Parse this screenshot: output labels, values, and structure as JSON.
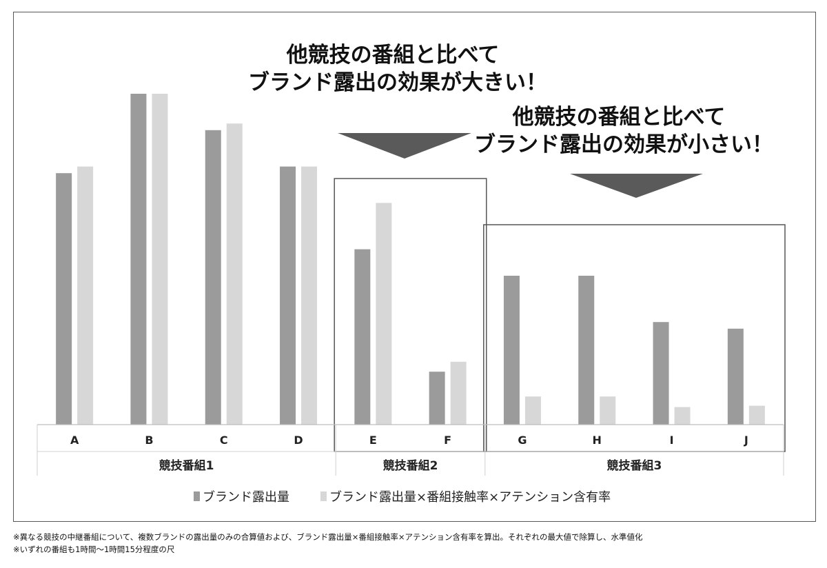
{
  "callouts": {
    "large": [
      "他競技の番組と比べて",
      "ブランド露出の効果が大きい！"
    ],
    "small": [
      "他競技の番組と比べて",
      "ブランド露出の効果が小さい！"
    ]
  },
  "legend": {
    "series1": "ブランド露出量",
    "series2": "ブランド露出量×番組接触率×アテンション含有率"
  },
  "notes": [
    "※異なる競技の中継番組について、複数ブランドの露出量のみの合算値および、ブランド露出量×番組接触率×アテンション含有率を算出。それぞれの最大値で除算し、水準値化",
    "※いずれの番組も1時間～1時間15分程度の尺"
  ],
  "colors": {
    "series1": "#9b9b9b",
    "series2": "#d7d7d7",
    "arrow": "#5a5a5a",
    "box": "#555555"
  },
  "chart_data": {
    "type": "bar",
    "categories": [
      "A",
      "B",
      "C",
      "D",
      "E",
      "F",
      "G",
      "H",
      "I",
      "J"
    ],
    "groups": [
      {
        "name": "競技番組1",
        "categories": [
          "A",
          "B",
          "C",
          "D"
        ]
      },
      {
        "name": "競技番組2",
        "categories": [
          "E",
          "F"
        ]
      },
      {
        "name": "競技番組3",
        "categories": [
          "G",
          "H",
          "I",
          "J"
        ]
      }
    ],
    "series": [
      {
        "name": "ブランド露出量",
        "values": [
          0.76,
          1.0,
          0.89,
          0.78,
          0.53,
          0.16,
          0.45,
          0.45,
          0.31,
          0.29
        ]
      },
      {
        "name": "ブランド露出量×番組接触率×アテンション含有率",
        "values": [
          0.78,
          1.0,
          0.91,
          0.78,
          0.67,
          0.19,
          0.085,
          0.085,
          0.053,
          0.057
        ]
      }
    ],
    "ylim": [
      0,
      1.0
    ],
    "highlighted_groups": [
      "競技番組2",
      "競技番組3"
    ],
    "legend_position": "bottom",
    "grid": false
  }
}
